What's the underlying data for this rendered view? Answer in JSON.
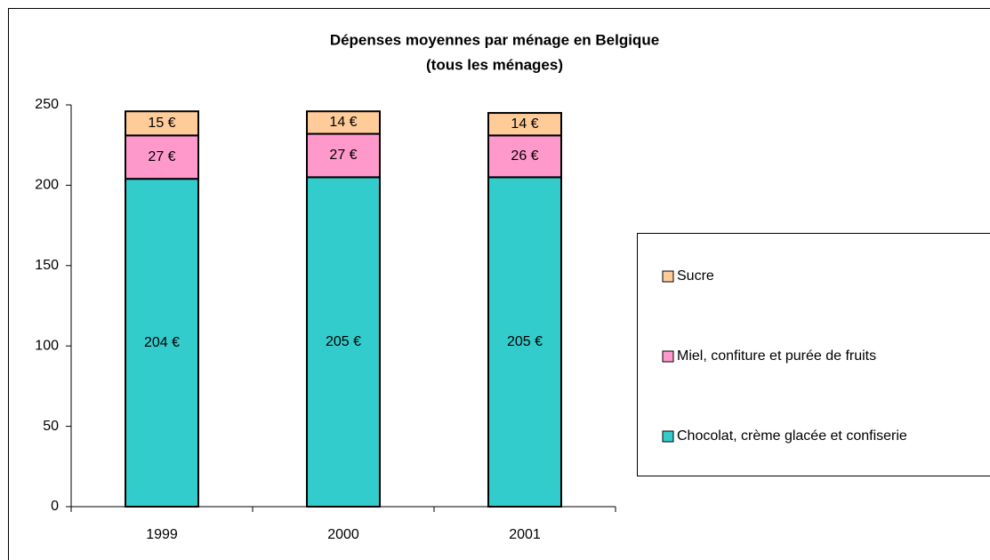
{
  "chart_data": {
    "type": "stacked_bar",
    "title": "Dépenses moyennes par ménage en Belgique",
    "subtitle": "(tous les ménages)",
    "categories": [
      "1999",
      "2000",
      "2001"
    ],
    "series": [
      {
        "name": "Chocolat, crème glacée et confiserie",
        "color": "#33cccc",
        "values": [
          204,
          205,
          205
        ],
        "value_labels": [
          "204 €",
          "205 €",
          "205 €"
        ]
      },
      {
        "name": "Miel, confiture et purée de fruits",
        "color": "#ff99cc",
        "values": [
          27,
          27,
          26
        ],
        "value_labels": [
          "27 €",
          "27 €",
          "26 €"
        ]
      },
      {
        "name": "Sucre",
        "color": "#ffcc99",
        "values": [
          15,
          14,
          14
        ],
        "value_labels": [
          "15 €",
          "14 €",
          "14 €"
        ]
      }
    ],
    "ylim": [
      0,
      250
    ],
    "yticks": [
      0,
      50,
      100,
      150,
      200,
      250
    ],
    "legend": "right"
  }
}
